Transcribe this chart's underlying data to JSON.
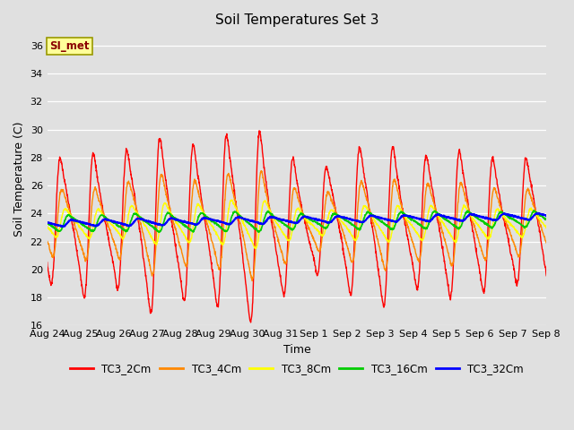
{
  "title": "Soil Temperatures Set 3",
  "xlabel": "Time",
  "ylabel": "Soil Temperature (C)",
  "ylim": [
    16,
    37
  ],
  "yticks": [
    16,
    18,
    20,
    22,
    24,
    26,
    28,
    30,
    32,
    34,
    36
  ],
  "series_colors": [
    "#ff0000",
    "#ff8800",
    "#ffff00",
    "#00cc00",
    "#0000ff"
  ],
  "series_names": [
    "TC3_2Cm",
    "TC3_4Cm",
    "TC3_8Cm",
    "TC3_16Cm",
    "TC3_32Cm"
  ],
  "line_widths": [
    1.0,
    1.0,
    1.0,
    1.2,
    1.5
  ],
  "background_color": "#e0e0e0",
  "plot_bg_color": "#e0e0e0",
  "legend_label": "SI_met",
  "legend_box_color": "#ffff99",
  "legend_box_edge": "#999900",
  "title_fontsize": 11,
  "axis_label_fontsize": 9,
  "tick_fontsize": 8,
  "n_points": 2000,
  "x_start_day": 0,
  "x_end_day": 15,
  "xtick_days": [
    0,
    1,
    2,
    3,
    4,
    5,
    6,
    7,
    8,
    9,
    10,
    11,
    12,
    13,
    14,
    15
  ],
  "xtick_labels": [
    "Aug 24",
    "Aug 25",
    "Aug 26",
    "Aug 27",
    "Aug 28",
    "Aug 29",
    "Aug 30",
    "Aug 31",
    "Sep 1",
    "Sep 2",
    "Sep 3",
    "Sep 4",
    "Sep 5",
    "Sep 6",
    "Sep 7",
    "Sep 8"
  ]
}
